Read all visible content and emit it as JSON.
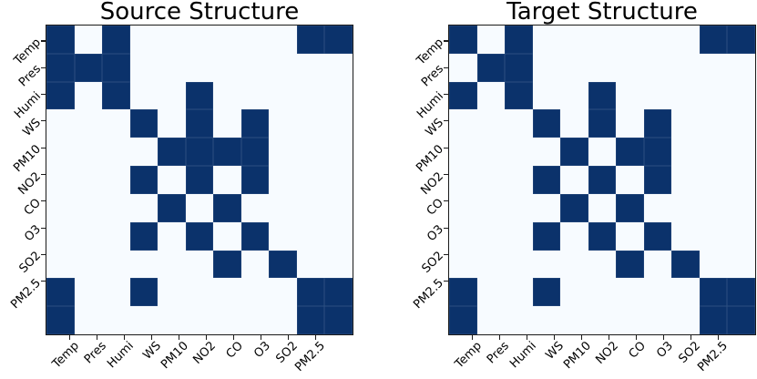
{
  "figure": {
    "background": "#ffffff",
    "colors": {
      "filled_cell": "#0b326b",
      "empty_cell": "#f7fbff",
      "frame": "#1a1a1a",
      "text": "#000000"
    }
  },
  "chart_data": [
    {
      "type": "heatmap",
      "title": "Source Structure",
      "row_labels": [
        "Temp",
        "Pres",
        "Humi",
        "WS",
        "PM10",
        "NO2",
        "CO",
        "O3",
        "SO2",
        "PM2.5"
      ],
      "col_labels": [
        "Temp",
        "Pres",
        "Humi",
        "WS",
        "PM10",
        "NO2",
        "CO",
        "O3",
        "SO2",
        "PM2.5"
      ],
      "label_rotation_deg": 45,
      "grid_rows": 11,
      "grid_cols": 11,
      "cell_encoding": {
        "1": "edge present (dark navy)",
        "0": "no edge (pale blue)"
      },
      "matrix": [
        [
          1,
          0,
          1,
          0,
          0,
          0,
          0,
          0,
          0,
          1,
          1
        ],
        [
          1,
          1,
          1,
          0,
          0,
          0,
          0,
          0,
          0,
          0,
          0
        ],
        [
          1,
          0,
          1,
          0,
          0,
          1,
          0,
          0,
          0,
          0,
          0
        ],
        [
          0,
          0,
          0,
          1,
          0,
          1,
          0,
          1,
          0,
          0,
          0
        ],
        [
          0,
          0,
          0,
          0,
          1,
          1,
          1,
          1,
          0,
          0,
          0
        ],
        [
          0,
          0,
          0,
          1,
          0,
          1,
          0,
          1,
          0,
          0,
          0
        ],
        [
          0,
          0,
          0,
          0,
          1,
          0,
          1,
          0,
          0,
          0,
          0
        ],
        [
          0,
          0,
          0,
          1,
          0,
          1,
          0,
          1,
          0,
          0,
          0
        ],
        [
          0,
          0,
          0,
          0,
          0,
          0,
          1,
          0,
          1,
          0,
          0
        ],
        [
          1,
          0,
          0,
          1,
          0,
          0,
          0,
          0,
          0,
          1,
          1
        ],
        [
          1,
          0,
          0,
          0,
          0,
          0,
          0,
          0,
          0,
          1,
          1
        ]
      ]
    },
    {
      "type": "heatmap",
      "title": "Target Structure",
      "row_labels": [
        "Temp",
        "Pres",
        "Humi",
        "WS",
        "PM10",
        "NO2",
        "CO",
        "O3",
        "SO2",
        "PM2.5"
      ],
      "col_labels": [
        "Temp",
        "Pres",
        "Humi",
        "WS",
        "PM10",
        "NO2",
        "CO",
        "O3",
        "SO2",
        "PM2.5"
      ],
      "label_rotation_deg": 45,
      "grid_rows": 11,
      "grid_cols": 11,
      "cell_encoding": {
        "1": "edge present (dark navy)",
        "0": "no edge (pale blue)"
      },
      "matrix": [
        [
          1,
          0,
          1,
          0,
          0,
          0,
          0,
          0,
          0,
          1,
          1
        ],
        [
          0,
          1,
          1,
          0,
          0,
          0,
          0,
          0,
          0,
          0,
          0
        ],
        [
          1,
          0,
          1,
          0,
          0,
          1,
          0,
          0,
          0,
          0,
          0
        ],
        [
          0,
          0,
          0,
          1,
          0,
          1,
          0,
          1,
          0,
          0,
          0
        ],
        [
          0,
          0,
          0,
          0,
          1,
          0,
          1,
          1,
          0,
          0,
          0
        ],
        [
          0,
          0,
          0,
          1,
          0,
          1,
          0,
          1,
          0,
          0,
          0
        ],
        [
          0,
          0,
          0,
          0,
          1,
          0,
          1,
          0,
          0,
          0,
          0
        ],
        [
          0,
          0,
          0,
          1,
          0,
          1,
          0,
          1,
          0,
          0,
          0
        ],
        [
          0,
          0,
          0,
          0,
          0,
          0,
          1,
          0,
          1,
          0,
          0
        ],
        [
          1,
          0,
          0,
          1,
          0,
          0,
          0,
          0,
          0,
          1,
          1
        ],
        [
          1,
          0,
          0,
          0,
          0,
          0,
          0,
          0,
          0,
          1,
          1
        ]
      ]
    }
  ]
}
